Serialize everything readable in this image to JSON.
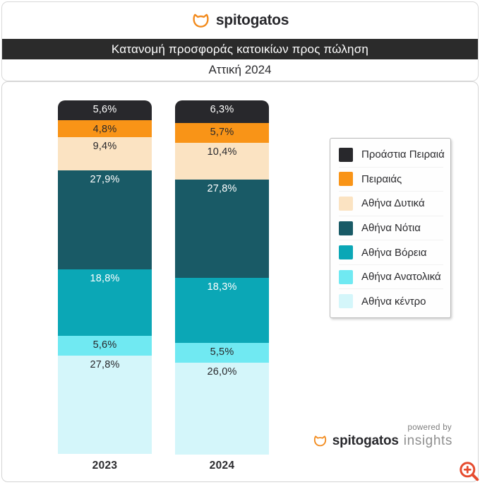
{
  "brand": {
    "name": "spitogatos"
  },
  "header": {
    "title": "Κατανομή προσφοράς κατοικίων προς πώληση",
    "subtitle": "Αττική 2024"
  },
  "chart_data": {
    "type": "bar",
    "stacked": true,
    "unit": "%",
    "ylim": [
      0,
      100
    ],
    "legend_position": "right",
    "stack_order": "top-to-bottom",
    "categories": [
      "2023",
      "2024"
    ],
    "series": [
      {
        "name": "Προάστια Πειραιά",
        "color": "#28282c",
        "label_color": "#ffffff",
        "values": [
          5.6,
          6.3
        ],
        "display": [
          "5,6%",
          "6,3%"
        ]
      },
      {
        "name": "Πειραιάς",
        "color": "#f99417",
        "label_color": "#28282c",
        "values": [
          4.8,
          5.7
        ],
        "display": [
          "4,8%",
          "5,7%"
        ]
      },
      {
        "name": "Αθήνα Δυτικά",
        "color": "#fbe3c2",
        "label_color": "#28282c",
        "values": [
          9.4,
          10.4
        ],
        "display": [
          "9,4%",
          "10,4%"
        ]
      },
      {
        "name": "Αθήνα Νότια",
        "color": "#195a66",
        "label_color": "#ffffff",
        "values": [
          27.9,
          27.8
        ],
        "display": [
          "27,9%",
          "27,8%"
        ]
      },
      {
        "name": "Αθήνα Βόρεια",
        "color": "#0ba7b6",
        "label_color": "#ffffff",
        "values": [
          18.8,
          18.3
        ],
        "display": [
          "18,8%",
          "18,3%"
        ]
      },
      {
        "name": "Αθήνα Ανατολικά",
        "color": "#70e9f2",
        "label_color": "#28282c",
        "values": [
          5.6,
          5.5
        ],
        "display": [
          "5,6%",
          "5,5%"
        ]
      },
      {
        "name": "Αθήνα κέντρο",
        "color": "#d4f6fa",
        "label_color": "#28282c",
        "values": [
          27.8,
          26.0
        ],
        "display": [
          "27,8%",
          "26,0%"
        ]
      }
    ]
  },
  "footer": {
    "powered_by": "powered by",
    "brand": "spitogatos",
    "product": "insights"
  },
  "colors": {
    "accent_orange": "#f28a1c",
    "title_band": "#2b2b2b",
    "zoom_red": "#e64b2e",
    "text_dark": "#28282c",
    "text_gray": "#8f8f8f"
  }
}
